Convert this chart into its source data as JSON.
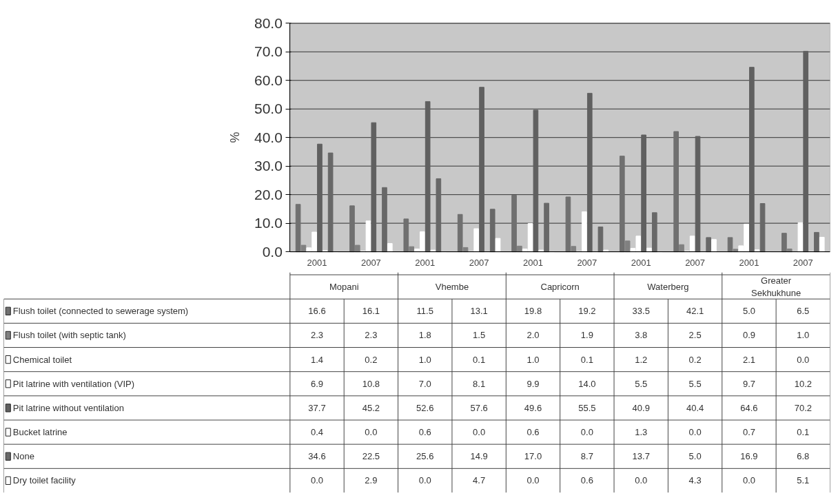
{
  "chart_data": {
    "type": "bar",
    "ylabel": "%",
    "categories": [
      "2001",
      "2007",
      "2001",
      "2007",
      "2001",
      "2007",
      "2001",
      "2007",
      "2001",
      "2007"
    ],
    "annotations": [
      "Mopani",
      "Vhembe",
      "Capricorn",
      "Waterberg",
      "Greater Sekhukhune"
    ],
    "series": [
      {
        "name": "Flush toilet (connected to sewerage system)",
        "color": "#707070",
        "values": [
          16.6,
          16.1,
          11.5,
          13.1,
          19.8,
          19.2,
          33.5,
          42.1,
          5.0,
          6.5
        ],
        "value_labels": [
          "16.6",
          "16.1",
          "11.5",
          "13.1",
          "19.8",
          "19.2",
          "33.5",
          "42.1",
          "5.0",
          "6.5"
        ]
      },
      {
        "name": "Flush toilet (with septic tank)",
        "color": "#808080",
        "values": [
          2.3,
          2.3,
          1.8,
          1.5,
          2.0,
          1.9,
          3.8,
          2.5,
          0.9,
          1.0
        ],
        "value_labels": [
          "2.3",
          "2.3",
          "1.8",
          "1.5",
          "2.0",
          "1.9",
          "3.8",
          "2.5",
          "0.9",
          "1.0"
        ]
      },
      {
        "name": "Chemical toilet",
        "color": "#ffffff",
        "values": [
          1.4,
          0.2,
          1.0,
          0.1,
          1.0,
          0.1,
          1.2,
          0.2,
          2.1,
          0.0
        ],
        "value_labels": [
          "1.4",
          "0.2",
          "1.0",
          "0.1",
          "1.0",
          "0.1",
          "1.2",
          "0.2",
          "2.1",
          "0.0"
        ]
      },
      {
        "name": "Pit latrine with ventilation (VIP)",
        "color": "#ffffff",
        "values": [
          6.9,
          10.8,
          7.0,
          8.1,
          9.9,
          14.0,
          5.5,
          5.5,
          9.7,
          10.2
        ],
        "value_labels": [
          "6.9",
          "10.8",
          "7.0",
          "8.1",
          "9.9",
          "14.0",
          "5.5",
          "5.5",
          "9.7",
          "10.2"
        ]
      },
      {
        "name": "Pit latrine without ventilation",
        "color": "#606060",
        "values": [
          37.7,
          45.2,
          52.6,
          57.6,
          49.6,
          55.5,
          40.9,
          40.4,
          64.6,
          70.2
        ],
        "value_labels": [
          "37.7",
          "45.2",
          "52.6",
          "57.6",
          "49.6",
          "55.5",
          "40.9",
          "40.4",
          "64.6",
          "70.2"
        ]
      },
      {
        "name": "Bucket latrine",
        "color": "#ffffff",
        "values": [
          0.4,
          0.0,
          0.6,
          0.0,
          0.6,
          0.0,
          1.3,
          0.0,
          0.7,
          0.1
        ],
        "value_labels": [
          "0.4",
          "0.0",
          "0.6",
          "0.0",
          "0.6",
          "0.0",
          "1.3",
          "0.0",
          "0.7",
          "0.1"
        ]
      },
      {
        "name": "None",
        "color": "#686868",
        "values": [
          34.6,
          22.5,
          25.6,
          14.9,
          17.0,
          8.7,
          13.7,
          5.0,
          16.9,
          6.8
        ],
        "value_labels": [
          "34.6",
          "22.5",
          "25.6",
          "14.9",
          "17.0",
          "8.7",
          "13.7",
          "5.0",
          "16.9",
          "6.8"
        ]
      },
      {
        "name": "Dry toilet facility",
        "color": "#ffffff",
        "values": [
          0.0,
          2.9,
          0.0,
          4.7,
          0.0,
          0.6,
          0.0,
          4.3,
          0.0,
          5.1
        ],
        "value_labels": [
          "0.0",
          "2.9",
          "0.0",
          "4.7",
          "0.0",
          "0.6",
          "0.0",
          "4.3",
          "0.0",
          "5.1"
        ]
      }
    ],
    "ylim": [
      0,
      80
    ],
    "yticks": [
      {
        "value": 0,
        "label": "0.0"
      },
      {
        "value": 10,
        "label": "10.0"
      },
      {
        "value": 20,
        "label": "20.0"
      },
      {
        "value": 30,
        "label": "30.0"
      },
      {
        "value": 40,
        "label": "40.0"
      },
      {
        "value": 50,
        "label": "50.0"
      },
      {
        "value": 60,
        "label": "60.0"
      },
      {
        "value": 70,
        "label": "70.0"
      },
      {
        "value": 80,
        "label": "80.0"
      }
    ],
    "grid": "y",
    "legend": "bottom"
  }
}
